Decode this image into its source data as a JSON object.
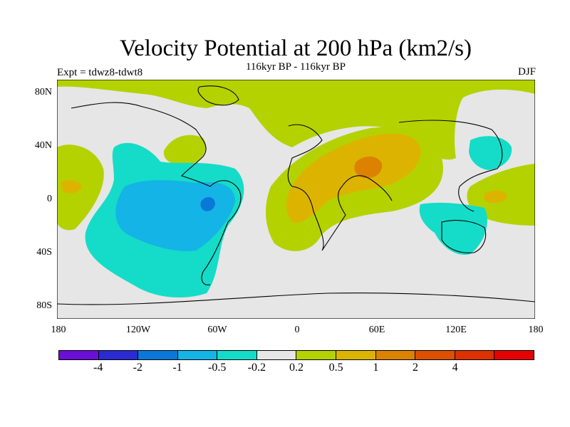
{
  "title": "Velocity Potential at 200 hPa (km2/s)",
  "subtitle": "116kyr BP - 116kyr BP",
  "left_label": "Expt = tdwz8-tdwt8",
  "right_label": "DJF",
  "y_ticks": [
    "80N",
    "40N",
    "0",
    "40S",
    "80S"
  ],
  "x_ticks": [
    "180",
    "120W",
    "60W",
    "0",
    "60E",
    "120E",
    "180"
  ],
  "colorbar": {
    "colors": [
      "#6a0fd8",
      "#2b2bd2",
      "#0a78d8",
      "#14b4e6",
      "#14dcc8",
      "#e6e6e6",
      "#b4d200",
      "#dcb400",
      "#dc8200",
      "#dc5000",
      "#dc3200",
      "#e60000"
    ],
    "labels": [
      "-4",
      "-2",
      "-1",
      "-0.5",
      "-0.2",
      "0.2",
      "0.5",
      "1",
      "2",
      "4"
    ]
  }
}
